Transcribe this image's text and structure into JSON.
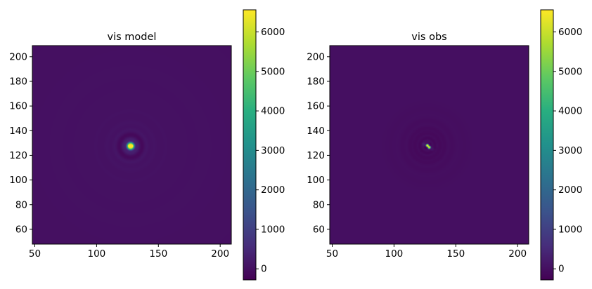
{
  "chart_data": [
    {
      "type": "heatmap",
      "title": "vis model",
      "xlabel": "",
      "ylabel": "",
      "xlim": [
        48,
        209
      ],
      "ylim": [
        48,
        209
      ],
      "xticks": [
        50,
        100,
        150,
        200
      ],
      "yticks": [
        60,
        80,
        100,
        120,
        140,
        160,
        180,
        200
      ],
      "colormap": "viridis",
      "colorbar": {
        "range": [
          -280,
          6560
        ],
        "ticks": [
          0,
          1000,
          2000,
          3000,
          4000,
          5000,
          6000
        ]
      },
      "background_value": 0,
      "peak": {
        "x": 127.5,
        "y": 127.5,
        "value": 6560
      },
      "features": [
        {
          "x": 127.5,
          "y": 127.5,
          "value": 6560,
          "width": 3
        },
        {
          "x": 126.5,
          "y": 127.5,
          "value": 3300,
          "width": 1
        },
        {
          "x": 128.5,
          "y": 127.5,
          "value": 3300,
          "width": 1
        }
      ],
      "rings": [
        {
          "radius": 5,
          "value": 320,
          "width": 2.5
        },
        {
          "radius": 9,
          "value": -150,
          "width": 2
        },
        {
          "radius": 13,
          "value": 120,
          "width": 2
        },
        {
          "radius": 19,
          "value": 70,
          "width": 3
        },
        {
          "radius": 28,
          "value": 40,
          "width": 5
        },
        {
          "radius": 40,
          "value": 25,
          "width": 8
        },
        {
          "radius": 58,
          "value": 20,
          "width": 12
        },
        {
          "radius": 80,
          "value": 15,
          "width": 18
        }
      ]
    },
    {
      "type": "heatmap",
      "title": "vis obs",
      "xlabel": "",
      "ylabel": "",
      "xlim": [
        48,
        209
      ],
      "ylim": [
        48,
        209
      ],
      "xticks": [
        50,
        100,
        150,
        200
      ],
      "yticks": [
        60,
        80,
        100,
        120,
        140,
        160,
        180,
        200
      ],
      "colormap": "viridis",
      "colorbar": {
        "range": [
          -280,
          6560
        ],
        "ticks": [
          0,
          1000,
          2000,
          3000,
          4000,
          5000,
          6000
        ]
      },
      "background_value": 0,
      "peak": {
        "x": 127,
        "y": 128,
        "value": 6560
      },
      "features": [
        {
          "x": 127,
          "y": 128,
          "value": 6560,
          "width": 1.2
        },
        {
          "x": 128.5,
          "y": 126.5,
          "value": 6200,
          "width": 1.2
        },
        {
          "x": 126,
          "y": 126.5,
          "value": -280,
          "width": 1.5
        },
        {
          "x": 129,
          "y": 129,
          "value": -200,
          "width": 1.5
        },
        {
          "x": 124,
          "y": 129,
          "value": 250,
          "width": 1.5
        },
        {
          "x": 131,
          "y": 125,
          "value": 200,
          "width": 1.5
        }
      ],
      "rings": [
        {
          "radius": 6,
          "value": -160,
          "width": 1.5
        },
        {
          "radius": 10,
          "value": -130,
          "width": 1.8
        },
        {
          "radius": 14,
          "value": -100,
          "width": 2
        },
        {
          "radius": 20,
          "value": -60,
          "width": 3
        },
        {
          "radius": 30,
          "value": -30,
          "width": 5
        }
      ]
    }
  ]
}
